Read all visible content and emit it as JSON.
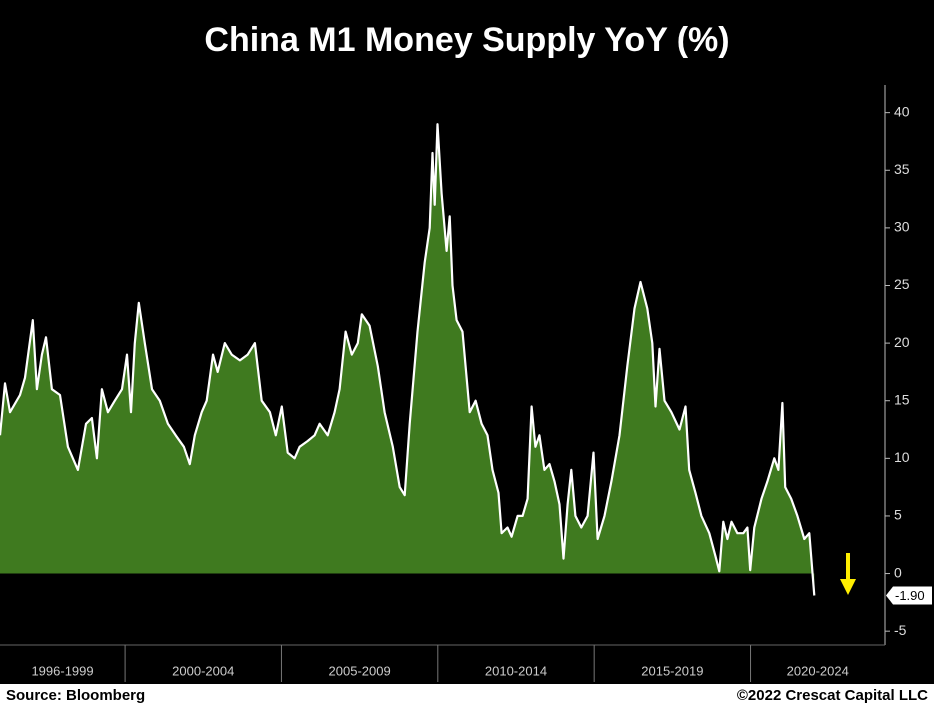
{
  "chart_data": {
    "type": "area",
    "title": "China M1 Money Supply YoY (%)",
    "source": "Source: Bloomberg",
    "credit": "©2022 Crescat Capital LLC",
    "color": "#3f7a1f",
    "line_color": "#ffffff",
    "xlim": [
      1996,
      2024.3
    ],
    "ylim": [
      -6.2,
      42.4
    ],
    "yticks": [
      -5,
      0,
      5,
      10,
      15,
      20,
      25,
      30,
      35,
      40
    ],
    "periods": [
      {
        "label": "1996-1999",
        "start": 1996,
        "end": 2000
      },
      {
        "label": "2000-2004",
        "start": 2000,
        "end": 2005
      },
      {
        "label": "2005-2009",
        "start": 2005,
        "end": 2010
      },
      {
        "label": "2010-2014",
        "start": 2010,
        "end": 2015
      },
      {
        "label": "2015-2019",
        "start": 2015,
        "end": 2020
      },
      {
        "label": "2020-2024",
        "start": 2020,
        "end": 2025
      }
    ],
    "x": [
      1996.0,
      1996.16,
      1996.32,
      1996.64,
      1996.8,
      1997.05,
      1997.18,
      1997.34,
      1997.47,
      1997.66,
      1997.92,
      1998.17,
      1998.49,
      1998.75,
      1998.94,
      1999.1,
      1999.26,
      1999.45,
      1999.67,
      1999.9,
      2000.06,
      2000.19,
      2000.31,
      2000.44,
      2000.63,
      2000.86,
      2001.11,
      2001.37,
      2001.62,
      2001.88,
      2002.07,
      2002.23,
      2002.45,
      2002.61,
      2002.81,
      2002.96,
      2003.19,
      2003.41,
      2003.67,
      2003.92,
      2004.15,
      2004.37,
      2004.63,
      2004.82,
      2005.01,
      2005.2,
      2005.42,
      2005.58,
      2005.84,
      2006.06,
      2006.22,
      2006.48,
      2006.7,
      2006.86,
      2007.05,
      2007.25,
      2007.44,
      2007.57,
      2007.82,
      2008.08,
      2008.3,
      2008.56,
      2008.78,
      2008.94,
      2009.1,
      2009.35,
      2009.58,
      2009.74,
      2009.83,
      2009.9,
      2009.99,
      2010.12,
      2010.28,
      2010.38,
      2010.47,
      2010.6,
      2010.79,
      2011.02,
      2011.21,
      2011.4,
      2011.59,
      2011.75,
      2011.94,
      2012.04,
      2012.23,
      2012.36,
      2012.55,
      2012.71,
      2012.87,
      2013.0,
      2013.12,
      2013.25,
      2013.41,
      2013.57,
      2013.73,
      2013.89,
      2014.02,
      2014.15,
      2014.27,
      2014.4,
      2014.59,
      2014.79,
      2014.98,
      2015.11,
      2015.33,
      2015.55,
      2015.81,
      2016.06,
      2016.29,
      2016.48,
      2016.7,
      2016.86,
      2016.96,
      2017.09,
      2017.25,
      2017.47,
      2017.73,
      2017.92,
      2018.04,
      2018.24,
      2018.43,
      2018.68,
      2018.88,
      2019.0,
      2019.13,
      2019.26,
      2019.39,
      2019.58,
      2019.77,
      2019.9,
      2019.99,
      2020.12,
      2020.35,
      2020.54,
      2020.76,
      2020.89,
      2021.02,
      2021.11,
      2021.3,
      2021.5,
      2021.72,
      2021.88,
      2022.04
    ],
    "values": [
      12,
      16.5,
      14,
      15.5,
      17,
      22,
      16,
      19,
      20.5,
      16,
      15.5,
      11,
      9,
      13,
      13.5,
      10,
      16,
      14,
      15,
      16,
      19,
      14,
      20,
      23.5,
      20,
      16,
      15,
      13,
      12,
      11,
      9.5,
      12,
      14,
      15,
      19,
      17.5,
      20,
      19,
      18.5,
      19,
      20,
      15,
      14,
      12,
      14.5,
      10.5,
      10,
      11,
      11.5,
      12,
      13,
      12,
      14,
      16,
      21,
      19,
      20,
      22.5,
      21.5,
      18,
      14,
      11,
      7.5,
      6.8,
      13,
      21,
      27,
      30,
      36.5,
      32,
      39,
      33,
      28,
      31,
      25,
      22,
      21,
      14,
      15,
      13,
      12,
      9,
      7,
      3.5,
      4,
      3.2,
      5,
      5,
      6.5,
      14.5,
      11,
      12,
      9,
      9.5,
      8,
      6,
      1.3,
      6,
      9,
      5,
      4,
      5,
      10.5,
      3,
      5,
      8,
      12,
      18,
      23,
      25.3,
      23,
      20,
      14.5,
      19.5,
      15,
      14,
      12.5,
      14.5,
      9,
      7,
      5,
      3.5,
      1.5,
      0.2,
      4.5,
      3,
      4.5,
      3.5,
      3.5,
      4,
      0.3,
      4,
      6.5,
      8,
      10,
      9,
      14.8,
      7.5,
      6.5,
      5,
      3,
      3.5,
      -1.9
    ],
    "value_labels": [
      null,
      null,
      null,
      null,
      null,
      null,
      null,
      null,
      null,
      null,
      null,
      null,
      null,
      null,
      null,
      null,
      null,
      null,
      null,
      null,
      null,
      null,
      null,
      null,
      null,
      null,
      null,
      null,
      null,
      null,
      null,
      null,
      null,
      null,
      null,
      null,
      null,
      null,
      null,
      null,
      null,
      null,
      null,
      null,
      null,
      null,
      null,
      null,
      null,
      null,
      null,
      null,
      null,
      null,
      null,
      null,
      null,
      null,
      null,
      null,
      null,
      null,
      null,
      null,
      null,
      null,
      null,
      null,
      null,
      null,
      null,
      null,
      null,
      null,
      null,
      null,
      null,
      null,
      null,
      null,
      null,
      null,
      null,
      null,
      null,
      null,
      null,
      null,
      null,
      null,
      null,
      null,
      null,
      null,
      null,
      null,
      null,
      null,
      null,
      null,
      null,
      null,
      null,
      null,
      null,
      null,
      null,
      null,
      null,
      null,
      null,
      null,
      null,
      null,
      null,
      null,
      null,
      null,
      null,
      null,
      null,
      null,
      null,
      null,
      null,
      null,
      null,
      null,
      null,
      null,
      null,
      null,
      null,
      null,
      null,
      null,
      null,
      null,
      null,
      null,
      null,
      null,
      "-1.90"
    ]
  }
}
